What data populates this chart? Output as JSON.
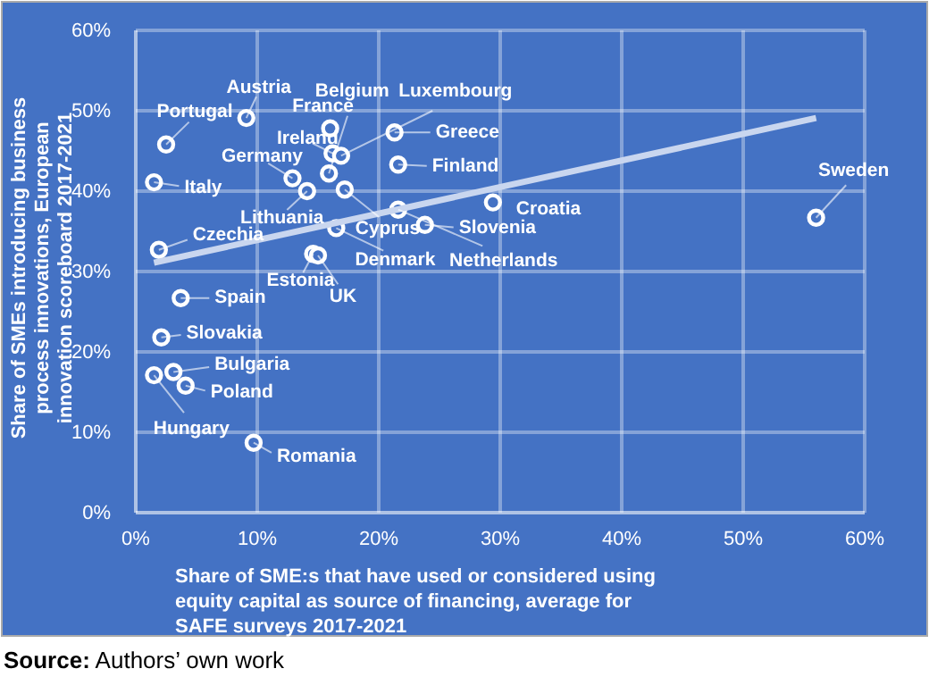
{
  "chart_data": {
    "type": "scatter",
    "xlabel": "Share of SME:s that have used or considered using equity capital as source of financing, average for SAFE surveys 2017-2021",
    "ylabel": "Share of SMEs introducing business process innovations, European innovation scoreboard 2017-2021",
    "xlim": [
      0,
      60
    ],
    "ylim": [
      0,
      60
    ],
    "xticks": [
      {
        "value": 0,
        "label": "0%"
      },
      {
        "value": 10,
        "label": "10%"
      },
      {
        "value": 20,
        "label": "20%"
      },
      {
        "value": 30,
        "label": "30%"
      },
      {
        "value": 40,
        "label": "40%"
      },
      {
        "value": 50,
        "label": "50%"
      },
      {
        "value": 60,
        "label": "60%"
      }
    ],
    "yticks": [
      {
        "value": 0,
        "label": "0%"
      },
      {
        "value": 10,
        "label": "10%"
      },
      {
        "value": 20,
        "label": "20%"
      },
      {
        "value": 30,
        "label": "30%"
      },
      {
        "value": 40,
        "label": "40%"
      },
      {
        "value": 50,
        "label": "50%"
      },
      {
        "value": 60,
        "label": "60%"
      }
    ],
    "grid": true,
    "series": [
      {
        "marker": "circle",
        "color": "#ffffff",
        "x": [
          9.1,
          2.5,
          1.5,
          12.9,
          14.1,
          16.0,
          16.2,
          15.9,
          16.9,
          21.3,
          21.6,
          17.2,
          21.6,
          23.8,
          29.4,
          16.5,
          14.6,
          15.0,
          1.9,
          3.7,
          2.1,
          3.1,
          1.5,
          4.1,
          9.7,
          56.0
        ],
        "values": [
          49.1,
          45.8,
          41.1,
          41.6,
          40.0,
          47.8,
          44.7,
          42.2,
          44.4,
          47.3,
          43.3,
          40.2,
          37.7,
          35.8,
          38.6,
          35.4,
          32.2,
          32.0,
          32.7,
          26.7,
          21.8,
          17.5,
          17.1,
          15.8,
          8.7,
          36.7
        ]
      },
      {
        "type": "line",
        "color": "#c9d6ef",
        "x": [
          1.5,
          56.0
        ],
        "values": [
          31.1,
          49.1
        ]
      }
    ],
    "annotations": [
      {
        "text": "Austria",
        "x": 9.1,
        "y": 49.1
      },
      {
        "text": "Portugal",
        "x": 2.5,
        "y": 45.8
      },
      {
        "text": "Italy",
        "x": 1.5,
        "y": 41.1
      },
      {
        "text": "Germany",
        "x": 12.9,
        "y": 41.6
      },
      {
        "text": "Lithuania",
        "x": 14.1,
        "y": 40.0
      },
      {
        "text": "France",
        "x": 16.0,
        "y": 47.8
      },
      {
        "text": "Ireland",
        "x": 16.2,
        "y": 44.7
      },
      {
        "text": "Belgium",
        "x": 15.9,
        "y": 42.2
      },
      {
        "text": "Luxembourg",
        "x": 16.9,
        "y": 44.4
      },
      {
        "text": "Greece",
        "x": 21.3,
        "y": 47.3
      },
      {
        "text": "Finland",
        "x": 21.6,
        "y": 43.3
      },
      {
        "text": "Cyprus",
        "x": 17.2,
        "y": 40.2
      },
      {
        "text": "Netherlands",
        "x": 21.6,
        "y": 37.7
      },
      {
        "text": "Slovenia",
        "x": 23.8,
        "y": 35.8
      },
      {
        "text": "Croatia",
        "x": 29.4,
        "y": 38.6
      },
      {
        "text": "Denmark",
        "x": 16.5,
        "y": 35.4
      },
      {
        "text": "Estonia",
        "x": 14.6,
        "y": 32.2
      },
      {
        "text": "UK",
        "x": 15.0,
        "y": 32.0
      },
      {
        "text": "Czechia",
        "x": 1.9,
        "y": 32.7
      },
      {
        "text": "Spain",
        "x": 3.7,
        "y": 26.7
      },
      {
        "text": "Slovakia",
        "x": 2.1,
        "y": 21.8
      },
      {
        "text": "Bulgaria",
        "x": 3.1,
        "y": 17.5
      },
      {
        "text": "Hungary",
        "x": 1.5,
        "y": 17.1
      },
      {
        "text": "Poland",
        "x": 4.1,
        "y": 15.8
      },
      {
        "text": "Romania",
        "x": 9.7,
        "y": 8.7
      },
      {
        "text": "Sweden",
        "x": 56.0,
        "y": 36.7
      },
      "Source: Authors’ own work"
    ]
  }
}
